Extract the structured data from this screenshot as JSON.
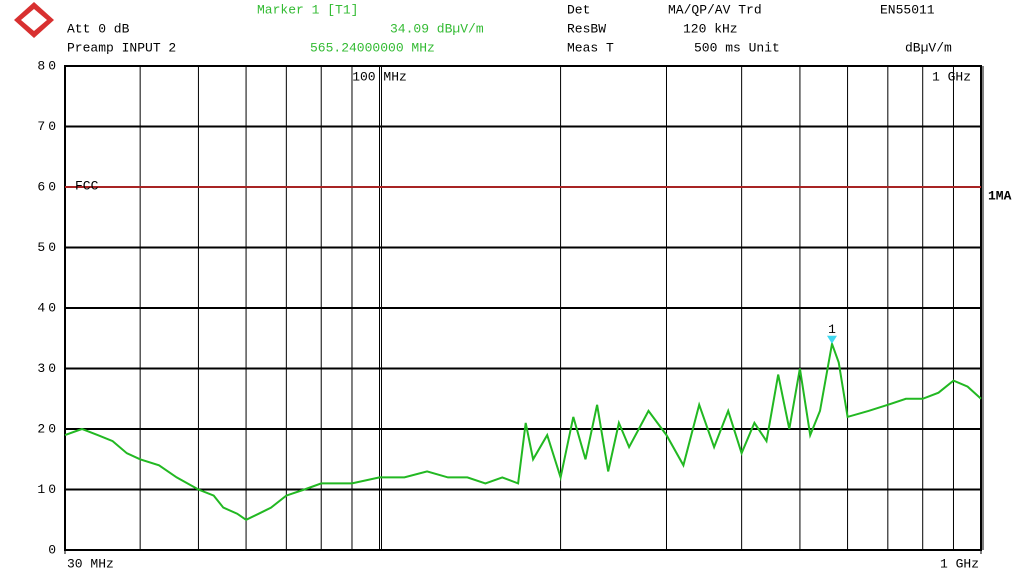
{
  "chart_data": {
    "type": "line",
    "header": {
      "marker": "Marker 1 [T1]",
      "marker_level": "34.09 dBµV/m",
      "marker_freq": "565.24000000 MHz",
      "att": "Att 0 dB",
      "preamp": "Preamp INPUT 2",
      "det": "Det",
      "det_mode": "MA/QP/AV Trd",
      "resbw": "ResBW",
      "resbw_value": "120 kHz",
      "meas_t": "Meas T",
      "meas_t_value": "500 ms Unit",
      "standard": "EN55011",
      "unit": "dBµV/m"
    },
    "xlog": true,
    "xlim": [
      30,
      1000
    ],
    "ylim": [
      0,
      80
    ],
    "yticks": [
      0,
      10,
      20,
      30,
      40,
      50,
      60,
      70,
      80
    ],
    "xticks": [
      {
        "value": 30,
        "label": "30 MHz"
      },
      {
        "value": 1000,
        "label": "1 GHz"
      }
    ],
    "xticks_top": [
      {
        "value": 100,
        "label": "100 MHz"
      },
      {
        "value": 1000,
        "label": "1 GHz"
      }
    ],
    "xgrid": [
      40,
      50,
      60,
      70,
      80,
      90,
      100,
      200,
      300,
      400,
      500,
      600,
      700,
      800,
      900
    ],
    "grid": true,
    "limit_line": {
      "label": "FCC",
      "value": 60,
      "color": "#e03030"
    },
    "marker": {
      "label": "1",
      "x": 565.24,
      "y": 34.09,
      "color": "#40d8f0"
    },
    "series": [
      {
        "name": "1MA",
        "color": "#22b822",
        "x": [
          30,
          32,
          34,
          36,
          38,
          40,
          43,
          46,
          50,
          53,
          55,
          58,
          60,
          63,
          66,
          70,
          75,
          80,
          90,
          100,
          110,
          120,
          130,
          140,
          150,
          160,
          170,
          175,
          180,
          190,
          200,
          210,
          220,
          230,
          240,
          250,
          260,
          280,
          300,
          320,
          340,
          360,
          380,
          400,
          420,
          440,
          460,
          480,
          500,
          520,
          540,
          565.24,
          580,
          600,
          650,
          700,
          750,
          800,
          850,
          900,
          950,
          1000
        ],
        "values": [
          19,
          20,
          19,
          18,
          16,
          15,
          14,
          12,
          10,
          9,
          7,
          6,
          5,
          6,
          7,
          9,
          10,
          11,
          11,
          12,
          12,
          13,
          12,
          12,
          11,
          12,
          11,
          21,
          15,
          19,
          12,
          22,
          15,
          24,
          13,
          21,
          17,
          23,
          19,
          14,
          24,
          17,
          23,
          16,
          21,
          18,
          29,
          20,
          30,
          19,
          23,
          34.09,
          31,
          22,
          23,
          24,
          25,
          25,
          26,
          28,
          27,
          25
        ]
      }
    ]
  }
}
